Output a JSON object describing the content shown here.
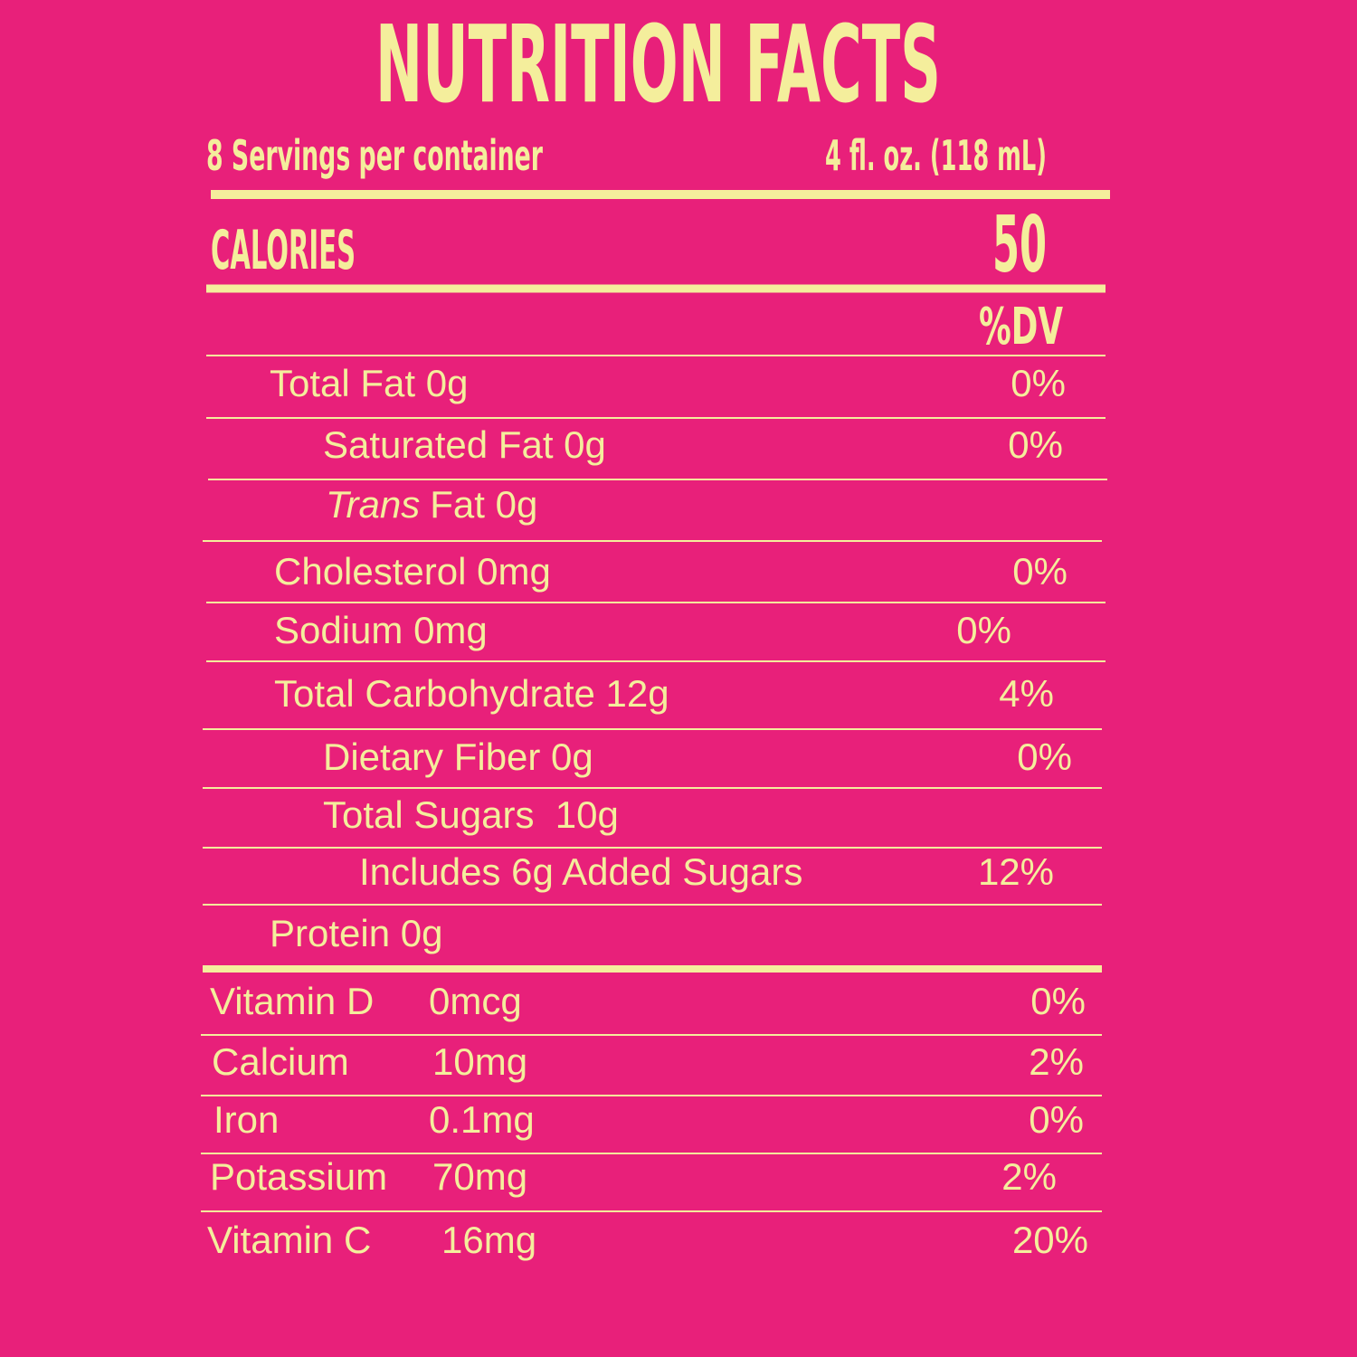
{
  "title": "NUTRITION FACTS",
  "servings": "8 Servings per container",
  "serving_size": "4 fl. oz. (118 mL)",
  "calories": {
    "label": "CALORIES",
    "value": 50
  },
  "dv_header": "%DV",
  "nutrients": [
    {
      "name": "Total Fat 0g",
      "dv": "0%"
    },
    {
      "name": "Saturated Fat 0g",
      "dv": "0%"
    },
    {
      "name_italic": "Trans",
      "name": "Fat 0g"
    },
    {
      "name": "Cholesterol 0mg",
      "dv": "0%"
    },
    {
      "name": "Sodium 0mg",
      "dv": "0%"
    },
    {
      "name": "Total Carbohydrate 12g",
      "dv": "4%"
    },
    {
      "name": "Dietary Fiber 0g",
      "dv": "0%"
    },
    {
      "name": "Total Sugars  10g"
    },
    {
      "name": "Includes 6g Added Sugars",
      "dv": "12%"
    },
    {
      "name": "Protein 0g"
    }
  ],
  "vitamins": [
    {
      "name": "Vitamin D",
      "amount": "0mcg",
      "dv": "0%"
    },
    {
      "name": "Calcium",
      "amount": "10mg",
      "dv": "2%"
    },
    {
      "name": "Iron",
      "amount": "0.1mg",
      "dv": "0%"
    },
    {
      "name": "Potassium",
      "amount": "70mg",
      "dv": "2%"
    },
    {
      "name": "Vitamin C",
      "amount": "16mg",
      "dv": "20%"
    }
  ]
}
